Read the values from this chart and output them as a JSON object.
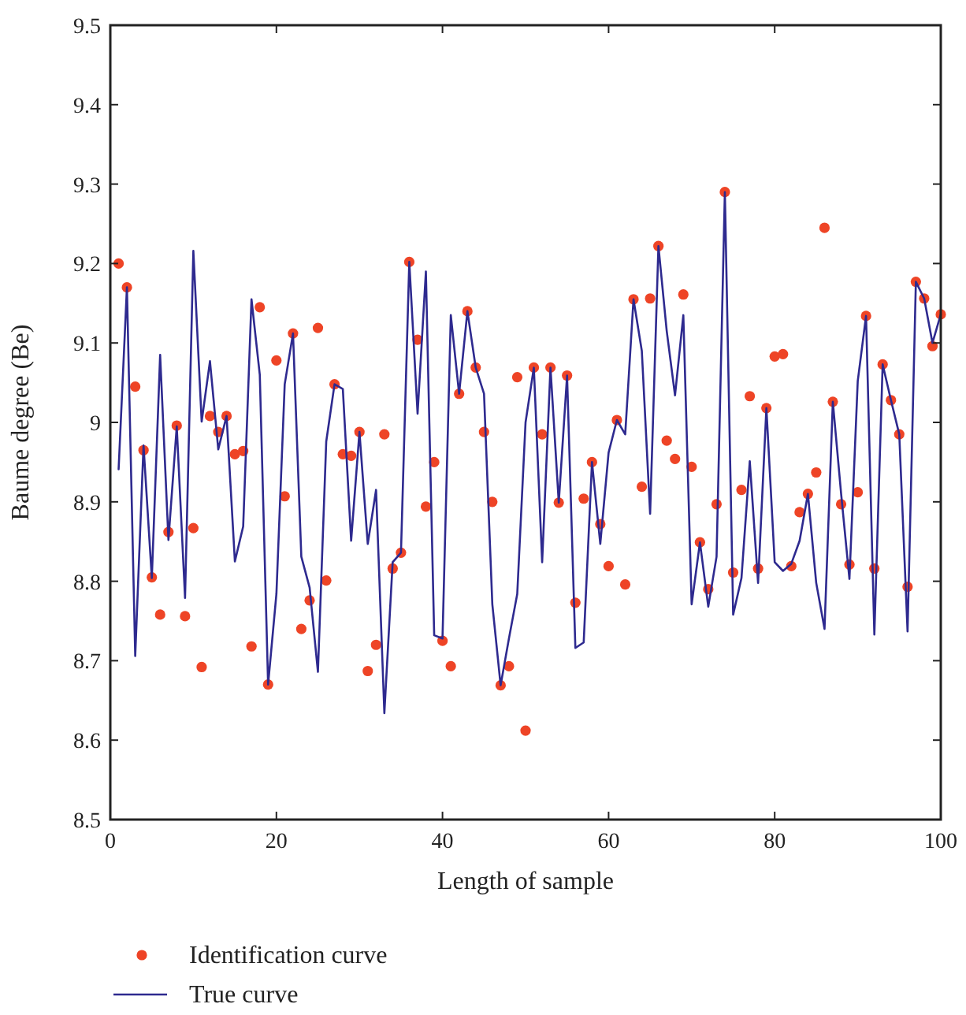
{
  "chart_data": {
    "type": "line",
    "xlabel": "Length of sample",
    "ylabel": "Baume degree (Be)",
    "x": [
      1,
      2,
      3,
      4,
      5,
      6,
      7,
      8,
      9,
      10,
      11,
      12,
      13,
      14,
      15,
      16,
      17,
      18,
      19,
      20,
      21,
      22,
      23,
      24,
      25,
      26,
      27,
      28,
      29,
      30,
      31,
      32,
      33,
      34,
      35,
      36,
      37,
      38,
      39,
      40,
      41,
      42,
      43,
      44,
      45,
      46,
      47,
      48,
      49,
      50,
      51,
      52,
      53,
      54,
      55,
      56,
      57,
      58,
      59,
      60,
      61,
      62,
      63,
      64,
      65,
      66,
      67,
      68,
      69,
      70,
      71,
      72,
      73,
      74,
      75,
      76,
      77,
      78,
      79,
      80,
      81,
      82,
      83,
      84,
      85,
      86,
      87,
      88,
      89,
      90,
      91,
      92,
      93,
      94,
      95,
      96,
      97,
      98,
      99,
      100
    ],
    "series": [
      {
        "name": "Identification curve",
        "type": "scatter",
        "marker": "circle",
        "color": "#ee4426",
        "values": [
          9.2,
          9.17,
          9.045,
          8.965,
          8.805,
          8.758,
          8.862,
          8.996,
          8.756,
          8.867,
          8.692,
          9.008,
          8.988,
          9.008,
          8.96,
          8.964,
          8.718,
          9.145,
          8.67,
          9.078,
          8.907,
          9.112,
          8.74,
          8.776,
          9.119,
          8.801,
          9.048,
          8.96,
          8.958,
          8.988,
          8.687,
          8.72,
          8.985,
          8.816,
          8.836,
          9.202,
          9.104,
          8.894,
          8.95,
          8.725,
          8.693,
          9.036,
          9.14,
          9.069,
          8.988,
          8.9,
          8.669,
          8.693,
          9.057,
          8.612,
          9.069,
          8.985,
          9.069,
          8.899,
          9.059,
          8.773,
          8.904,
          8.95,
          8.872,
          8.819,
          9.003,
          8.796,
          9.155,
          8.919,
          9.156,
          9.222,
          8.977,
          8.954,
          9.161,
          8.944,
          8.849,
          8.79,
          8.897,
          9.29,
          8.811,
          8.915,
          9.033,
          8.816,
          9.018,
          9.083,
          9.086,
          8.819,
          8.887,
          8.91,
          8.937,
          9.245,
          9.026,
          8.897,
          8.821,
          8.912,
          9.134,
          8.816,
          9.073,
          9.028,
          8.985,
          8.793,
          9.177,
          9.156,
          9.096,
          9.136
        ]
      },
      {
        "name": "True curve",
        "marker": "none",
        "color": "#2e2a8f",
        "values": [
          8.941,
          9.17,
          8.706,
          8.971,
          8.804,
          9.085,
          8.852,
          8.995,
          8.779,
          9.216,
          9.001,
          9.077,
          8.966,
          9.008,
          8.825,
          8.869,
          9.155,
          9.06,
          8.67,
          8.784,
          9.048,
          9.112,
          8.831,
          8.792,
          8.686,
          8.976,
          9.048,
          9.042,
          8.851,
          8.988,
          8.847,
          8.915,
          8.634,
          8.824,
          8.836,
          9.202,
          9.011,
          9.19,
          8.732,
          8.728,
          9.135,
          9.036,
          9.14,
          9.069,
          9.036,
          8.771,
          8.669,
          8.728,
          8.784,
          9.0,
          9.069,
          8.824,
          9.069,
          8.899,
          9.059,
          8.716,
          8.723,
          8.95,
          8.847,
          8.962,
          9.003,
          8.985,
          9.155,
          9.09,
          8.885,
          9.222,
          9.115,
          9.034,
          9.135,
          8.771,
          8.849,
          8.768,
          8.831,
          9.29,
          8.758,
          8.804,
          8.951,
          8.798,
          9.018,
          8.824,
          8.813,
          8.822,
          8.851,
          8.91,
          8.798,
          8.74,
          9.026,
          8.91,
          8.803,
          9.052,
          9.134,
          8.733,
          9.073,
          9.028,
          8.985,
          8.737,
          9.177,
          9.156,
          9.1,
          9.136
        ]
      }
    ],
    "xlim": [
      0,
      100
    ],
    "xticks": [
      0,
      20,
      40,
      60,
      80,
      100
    ],
    "ylim": [
      8.5,
      9.5
    ],
    "yticks": [
      8.5,
      8.6,
      8.7,
      8.8,
      8.9,
      9,
      9.1,
      9.2,
      9.3,
      9.4,
      9.5
    ],
    "grid": false,
    "legend": "bottom left"
  }
}
